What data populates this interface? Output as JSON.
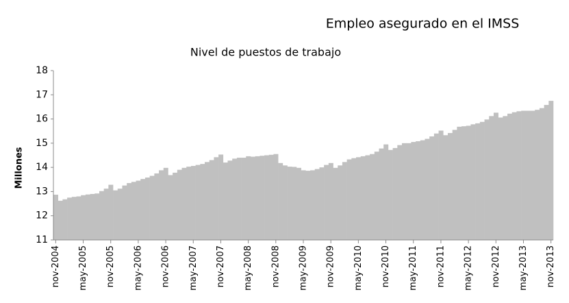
{
  "chart_data": {
    "type": "bar",
    "title": "Empleo asegurado en el IMSS",
    "subtitle": "Nivel de puestos de trabajo",
    "ylabel": "Millones",
    "color": "#c0c0c0",
    "ylim": [
      11,
      18
    ],
    "yticks": [
      11,
      12,
      13,
      14,
      15,
      16,
      17,
      18
    ],
    "grid": false,
    "categories": [
      "nov-2004",
      null,
      null,
      null,
      null,
      null,
      "may-2005",
      null,
      null,
      null,
      null,
      null,
      "nov-2005",
      null,
      null,
      null,
      null,
      null,
      "may-2006",
      null,
      null,
      null,
      null,
      null,
      "nov-2006",
      null,
      null,
      null,
      null,
      null,
      "may-2007",
      null,
      null,
      null,
      null,
      null,
      "nov-2007",
      null,
      null,
      null,
      null,
      null,
      "may-2008",
      null,
      null,
      null,
      null,
      null,
      "nov-2008",
      null,
      null,
      null,
      null,
      null,
      "may-2009",
      null,
      null,
      null,
      null,
      null,
      "nov-2009",
      null,
      null,
      null,
      null,
      null,
      "may-2010",
      null,
      null,
      null,
      null,
      null,
      "nov-2010",
      null,
      null,
      null,
      null,
      null,
      "may-2011",
      null,
      null,
      null,
      null,
      null,
      "nov-2011",
      null,
      null,
      null,
      null,
      null,
      "may-2012",
      null,
      null,
      null,
      null,
      null,
      "nov-2012",
      null,
      null,
      null,
      null,
      null,
      "may-2013",
      null,
      null,
      null,
      null,
      null,
      "nov-2013"
    ],
    "values": [
      12.87,
      12.62,
      12.68,
      12.75,
      12.78,
      12.8,
      12.85,
      12.88,
      12.9,
      12.92,
      13.02,
      13.12,
      13.28,
      13.05,
      13.12,
      13.25,
      13.35,
      13.4,
      13.45,
      13.52,
      13.58,
      13.65,
      13.75,
      13.88,
      13.98,
      13.68,
      13.78,
      13.9,
      13.98,
      14.03,
      14.06,
      14.1,
      14.14,
      14.22,
      14.3,
      14.42,
      14.53,
      14.2,
      14.28,
      14.36,
      14.4,
      14.4,
      14.46,
      14.44,
      14.46,
      14.48,
      14.5,
      14.52,
      14.55,
      14.18,
      14.08,
      14.03,
      14.02,
      13.98,
      13.88,
      13.86,
      13.88,
      13.93,
      14.0,
      14.1,
      14.18,
      13.98,
      14.08,
      14.22,
      14.33,
      14.38,
      14.42,
      14.46,
      14.5,
      14.55,
      14.65,
      14.78,
      14.95,
      14.72,
      14.8,
      14.92,
      15.0,
      15.0,
      15.05,
      15.08,
      15.12,
      15.18,
      15.28,
      15.4,
      15.52,
      15.33,
      15.42,
      15.55,
      15.68,
      15.7,
      15.72,
      15.78,
      15.82,
      15.88,
      15.98,
      16.12,
      16.26,
      16.06,
      16.12,
      16.22,
      16.28,
      16.32,
      16.34,
      16.34,
      16.34,
      16.38,
      16.45,
      16.58,
      16.75
    ]
  }
}
